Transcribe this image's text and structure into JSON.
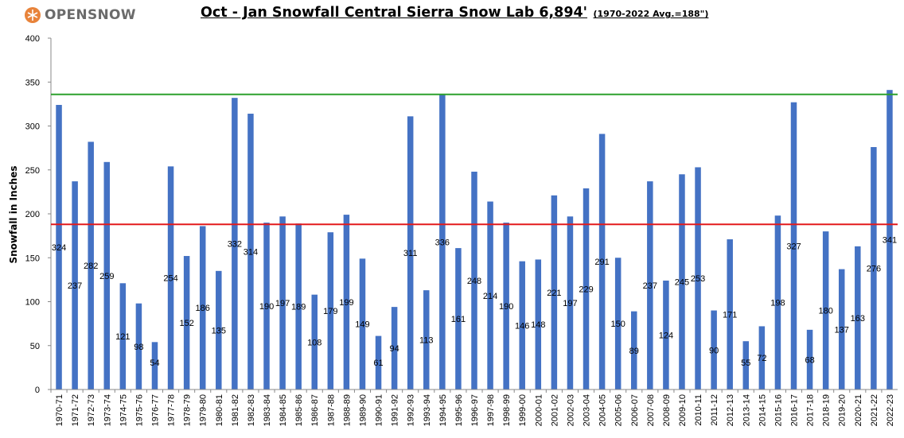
{
  "logo": {
    "text": "OPENSNOW",
    "icon": "opensnow-logo-icon"
  },
  "chart_data": {
    "type": "bar",
    "title": "Oct - Jan Snowfall Central Sierra Snow Lab 6,894'",
    "subtitle": "(1970-2022 Avg.=188\")",
    "xlabel": "",
    "ylabel": "Snowfall in Inches",
    "ylim": [
      0,
      400
    ],
    "yticks": [
      0,
      50,
      100,
      150,
      200,
      250,
      300,
      350,
      400
    ],
    "grid": false,
    "legend": "none",
    "colors": {
      "bar": "#4472C4",
      "average_line": "#e31a1c",
      "record_line": "#2ca02c"
    },
    "reference_lines": [
      {
        "value": 188,
        "color": "#e31a1c"
      },
      {
        "value": 336,
        "color": "#2ca02c"
      }
    ],
    "categories": [
      "1970-71",
      "1971-72",
      "1972-73",
      "1973-74",
      "1974-75",
      "1975-76",
      "1976-77",
      "1977-78",
      "1978-79",
      "1979-80",
      "1980-81",
      "1981-82",
      "1982-83",
      "1983-84",
      "1984-85",
      "1985-86",
      "1986-87",
      "1987-88",
      "1988-89",
      "1989-90",
      "1990-91",
      "1991-92",
      "1992-93",
      "1993-94",
      "1994-95",
      "1995-96",
      "1996-97",
      "1997-98",
      "1998-99",
      "1999-00",
      "2000-01",
      "2001-02",
      "2002-03",
      "2003-04",
      "2004-05",
      "2005-06",
      "2006-07",
      "2007-08",
      "2008-09",
      "2009-10",
      "2010-11",
      "2011-12",
      "2012-13",
      "2013-14",
      "2014-15",
      "2015-16",
      "2016-17",
      "2017-18",
      "2018-19",
      "2019-20",
      "2020-21",
      "2021-22",
      "2022-23"
    ],
    "values": [
      324,
      237,
      282,
      259,
      121,
      98,
      54,
      254,
      152,
      186,
      135,
      332,
      314,
      190,
      197,
      189,
      108,
      179,
      199,
      149,
      61,
      94,
      311,
      113,
      336,
      161,
      248,
      214,
      190,
      146,
      148,
      221,
      197,
      229,
      291,
      150,
      89,
      237,
      124,
      245,
      253,
      90,
      171,
      55,
      72,
      198,
      327,
      68,
      180,
      137,
      163,
      276,
      341
    ]
  }
}
